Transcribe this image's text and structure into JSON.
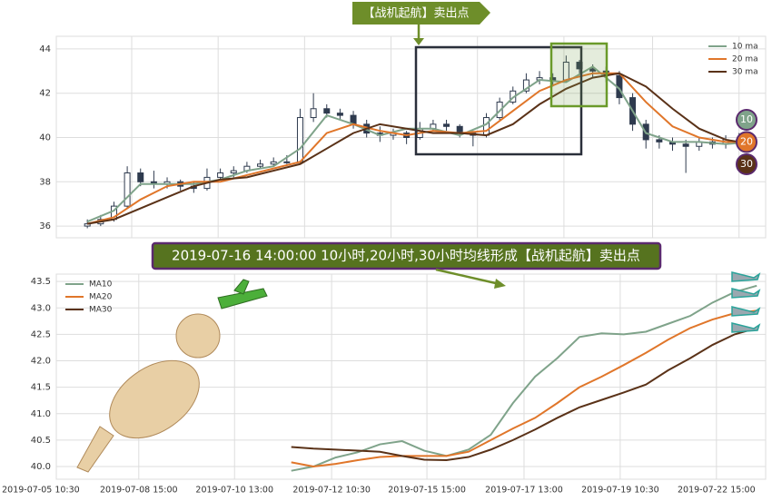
{
  "chart_data": [
    {
      "type": "candlestick",
      "annotation": "【战机起航】卖出点",
      "x": [
        7,
        10,
        13,
        16,
        19,
        22,
        25,
        28,
        31,
        34,
        37,
        40,
        43,
        46,
        49,
        52,
        55,
        58,
        61,
        64,
        67,
        70,
        73,
        76,
        79,
        82,
        85,
        88,
        91,
        94,
        97,
        100,
        103,
        106,
        109,
        112,
        115,
        118,
        121,
        124,
        127,
        130,
        133,
        136,
        139,
        142,
        145,
        148,
        151,
        154,
        157
      ],
      "open": [
        36.0,
        36.1,
        36.3,
        36.9,
        38.4,
        38.0,
        37.9,
        38.0,
        37.8,
        37.7,
        38.2,
        38.4,
        38.5,
        38.7,
        38.8,
        38.9,
        38.9,
        40.9,
        41.3,
        41.1,
        41.0,
        40.6,
        40.2,
        40.1,
        40.2,
        40.0,
        40.4,
        40.6,
        40.5,
        40.2,
        40.1,
        40.9,
        41.6,
        42.1,
        42.6,
        42.7,
        42.6,
        43.4,
        43.1,
        43.0,
        42.8,
        41.8,
        40.6,
        39.9,
        39.8,
        39.7,
        39.6,
        39.8,
        39.7,
        39.9,
        39.8
      ],
      "high": [
        36.3,
        36.5,
        37.1,
        38.7,
        38.6,
        38.5,
        38.2,
        38.1,
        38.0,
        38.6,
        38.6,
        38.7,
        38.9,
        39.0,
        39.1,
        39.2,
        41.3,
        42.0,
        41.5,
        41.3,
        41.2,
        40.8,
        40.5,
        40.4,
        40.3,
        40.7,
        40.8,
        40.8,
        40.6,
        40.3,
        41.1,
        41.8,
        42.3,
        42.9,
        43.0,
        42.9,
        43.7,
        43.5,
        43.3,
        43.2,
        43.0,
        42.0,
        40.8,
        40.1,
        40.0,
        39.9,
        40.0,
        40.0,
        40.1,
        40.2,
        39.9
      ],
      "low": [
        35.9,
        36.0,
        36.2,
        36.8,
        37.8,
        37.7,
        37.7,
        37.6,
        37.5,
        37.6,
        38.1,
        38.2,
        38.4,
        38.6,
        38.7,
        38.8,
        38.8,
        40.7,
        40.9,
        40.8,
        40.4,
        40.0,
        39.8,
        39.9,
        39.7,
        39.9,
        40.3,
        40.3,
        40.0,
        39.6,
        40.0,
        40.8,
        41.5,
        42.0,
        42.4,
        42.3,
        42.5,
        42.9,
        42.7,
        42.5,
        41.5,
        40.3,
        39.5,
        39.5,
        39.4,
        38.4,
        39.4,
        39.5,
        39.5,
        39.6,
        39.5
      ],
      "close": [
        36.1,
        36.3,
        36.9,
        38.4,
        38.0,
        37.9,
        38.0,
        37.8,
        37.7,
        38.2,
        38.4,
        38.5,
        38.7,
        38.8,
        38.9,
        38.9,
        40.9,
        41.3,
        41.1,
        41.0,
        40.6,
        40.2,
        40.1,
        40.2,
        40.0,
        40.4,
        40.6,
        40.5,
        40.2,
        40.1,
        40.9,
        41.6,
        42.1,
        42.6,
        42.7,
        42.6,
        43.4,
        43.1,
        43.0,
        42.8,
        41.8,
        40.6,
        39.9,
        39.8,
        39.7,
        39.6,
        39.8,
        39.7,
        39.9,
        39.8,
        39.7
      ],
      "up_color": "#ffffff",
      "down_color": "#2e3a4e",
      "series": [
        {
          "name": "10 ma",
          "color": "#7fa38a",
          "x": [
            7,
            13,
            19,
            25,
            31,
            37,
            43,
            49,
            55,
            61,
            67,
            73,
            79,
            85,
            91,
            97,
            103,
            109,
            115,
            121,
            127,
            133,
            139,
            145,
            151,
            157
          ],
          "values": [
            36.2,
            36.7,
            37.9,
            37.9,
            37.9,
            38.1,
            38.5,
            38.7,
            39.5,
            41.0,
            40.6,
            40.1,
            40.4,
            40.4,
            40.1,
            40.6,
            41.8,
            42.6,
            42.5,
            43.2,
            42.2,
            40.2,
            39.8,
            39.8,
            39.7,
            39.8
          ]
        },
        {
          "name": "20 ma",
          "color": "#e0762a",
          "x": [
            7,
            13,
            19,
            25,
            31,
            37,
            43,
            49,
            55,
            61,
            67,
            73,
            79,
            85,
            91,
            97,
            103,
            109,
            115,
            121,
            127,
            133,
            139,
            145,
            151,
            157
          ],
          "values": [
            36.1,
            36.4,
            37.2,
            37.8,
            38.0,
            38.0,
            38.3,
            38.6,
            38.9,
            40.2,
            40.6,
            40.3,
            40.1,
            40.3,
            40.2,
            40.3,
            41.2,
            42.1,
            42.6,
            42.9,
            42.9,
            41.6,
            40.5,
            40.0,
            39.8,
            39.8
          ]
        },
        {
          "name": "30 ma",
          "color": "#5a3218",
          "x": [
            7,
            13,
            19,
            25,
            31,
            37,
            43,
            49,
            55,
            61,
            67,
            73,
            79,
            85,
            91,
            97,
            103,
            109,
            115,
            121,
            127,
            133,
            139,
            145,
            151,
            157
          ],
          "values": [
            36.1,
            36.3,
            36.8,
            37.3,
            37.8,
            38.1,
            38.2,
            38.5,
            38.8,
            39.5,
            40.2,
            40.6,
            40.4,
            40.2,
            40.2,
            40.1,
            40.6,
            41.5,
            42.2,
            42.7,
            42.9,
            42.3,
            41.3,
            40.4,
            39.9,
            39.7
          ]
        }
      ],
      "badges": [
        "10",
        "20",
        "30"
      ],
      "xlim": [
        0,
        160
      ],
      "xticks": [
        17,
        36.5,
        56,
        75.5,
        95,
        114.5,
        134.5,
        154
      ],
      "ylim": [
        35.47,
        44.57
      ],
      "yticks": [
        36,
        38,
        40,
        42,
        44
      ],
      "grid": true,
      "legend": "upper right"
    },
    {
      "type": "line",
      "annotation": "2019-07-16 14:00:00 10小时,20小时,30小时均线形成【战机起航】卖出点",
      "x": [
        53,
        58,
        63,
        68,
        73,
        78,
        83,
        88,
        93,
        98,
        103,
        108,
        113,
        118,
        123,
        128,
        133,
        138,
        143,
        148,
        153,
        158
      ],
      "series": [
        {
          "name": "MA10",
          "color": "#7fa38a",
          "values": [
            39.92,
            40.0,
            40.17,
            40.27,
            40.42,
            40.48,
            40.3,
            40.2,
            40.32,
            40.6,
            41.2,
            41.7,
            42.05,
            42.45,
            42.52,
            42.5,
            42.55,
            42.7,
            42.85,
            43.1,
            43.3,
            43.42
          ]
        },
        {
          "name": "MA20",
          "color": "#e0762a",
          "values": [
            40.08,
            40.0,
            40.05,
            40.12,
            40.18,
            40.2,
            40.2,
            40.2,
            40.28,
            40.5,
            40.72,
            40.92,
            41.2,
            41.5,
            41.7,
            41.92,
            42.15,
            42.4,
            42.62,
            42.78,
            42.9,
            42.95
          ]
        },
        {
          "name": "MA30",
          "color": "#5a3218",
          "values": [
            40.37,
            40.34,
            40.32,
            40.3,
            40.28,
            40.2,
            40.13,
            40.12,
            40.18,
            40.32,
            40.5,
            40.7,
            40.92,
            41.12,
            41.26,
            41.4,
            41.55,
            41.82,
            42.05,
            42.3,
            42.5,
            42.62
          ]
        }
      ],
      "xlim": [
        0,
        160
      ],
      "xticks": [
        {
          "value": -3.5,
          "label": "2019-07-05 10:30"
        },
        {
          "value": 18.6,
          "label": "2019-07-08 15:00"
        },
        {
          "value": 40.2,
          "label": "2019-07-10 13:00"
        },
        {
          "value": 62.1,
          "label": "2019-07-12 10:30"
        },
        {
          "value": 83.6,
          "label": "2019-07-15 15:00"
        },
        {
          "value": 105.5,
          "label": "2019-07-17 13:00"
        },
        {
          "value": 127.2,
          "label": "2019-07-19 10:30"
        },
        {
          "value": 148.9,
          "label": "2019-07-22 15:00"
        }
      ],
      "ylim": [
        39.76,
        43.64
      ],
      "yticks": [
        {
          "value": 40,
          "label": "40.0"
        },
        40.5,
        {
          "value": 41,
          "label": "41.0"
        },
        41.5,
        {
          "value": 42,
          "label": "42.0"
        },
        42.5,
        {
          "value": 43,
          "label": "43.0"
        },
        43.5
      ],
      "grid": true,
      "legend": "upper left"
    }
  ]
}
